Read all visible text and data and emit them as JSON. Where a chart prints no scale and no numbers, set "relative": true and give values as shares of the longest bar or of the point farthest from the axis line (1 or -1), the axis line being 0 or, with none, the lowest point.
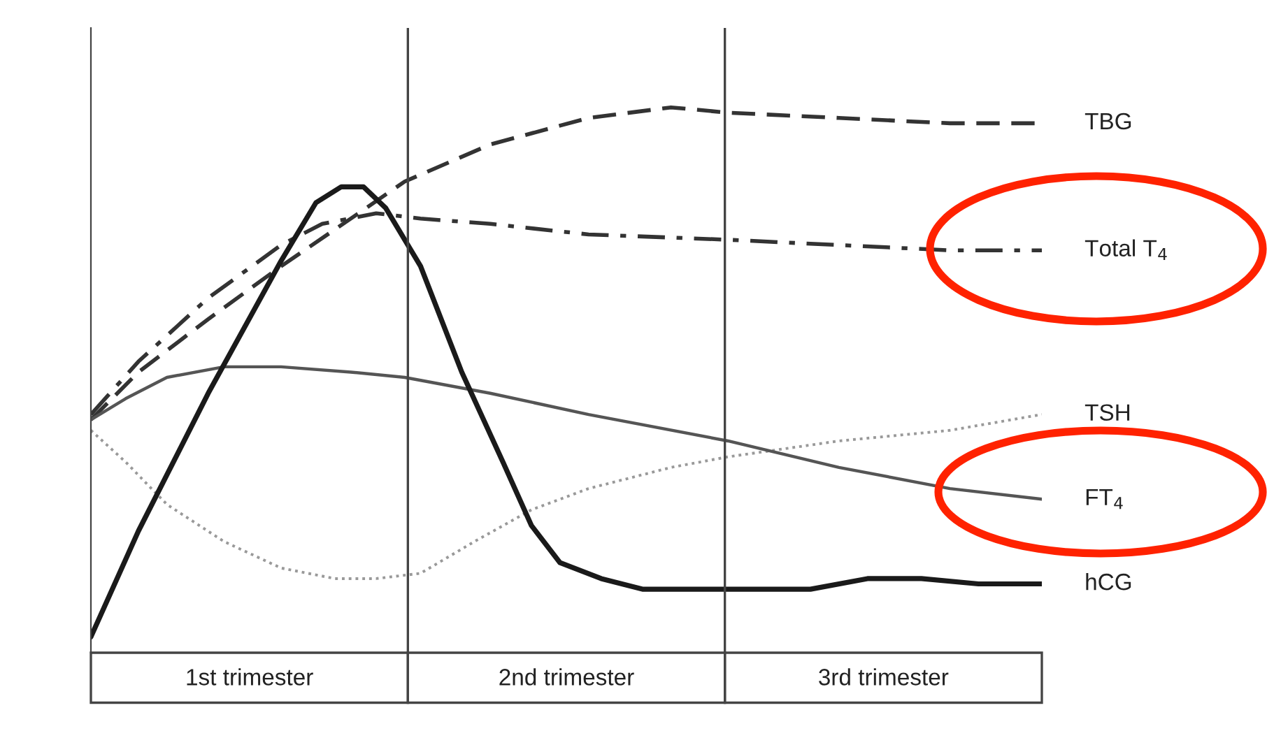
{
  "chart_data": {
    "type": "line",
    "relative": true,
    "xlim": [
      0,
      3
    ],
    "xticks": [
      {
        "value": 0.5,
        "label": "1st trimester"
      },
      {
        "value": 1.5,
        "label": "2nd trimester"
      },
      {
        "value": 2.5,
        "label": "3rd trimester"
      }
    ],
    "ref_lines": [
      {
        "axis": "x",
        "value": 1,
        "color": "#444444"
      },
      {
        "axis": "x",
        "value": 2,
        "color": "#444444"
      }
    ],
    "series": [
      {
        "name": "TBG",
        "color": "#333333",
        "line_style": "dashed",
        "x": [
          0,
          0.15,
          0.37,
          0.6,
          0.82,
          0.99,
          1.26,
          1.57,
          1.83,
          2.01,
          2.36,
          2.71,
          3
        ],
        "values": [
          0.41,
          0.5,
          0.6,
          0.7,
          0.79,
          0.86,
          0.93,
          0.98,
          1,
          0.99,
          0.98,
          0.97,
          0.97
        ]
      },
      {
        "name": "Total T$_{4}$",
        "color": "#333333",
        "line_style": "dashdot",
        "x": [
          0,
          0.15,
          0.37,
          0.6,
          0.73,
          0.9,
          1.04,
          1.26,
          1.57,
          2.01,
          2.36,
          2.71,
          3
        ],
        "values": [
          0.42,
          0.52,
          0.64,
          0.74,
          0.78,
          0.8,
          0.79,
          0.78,
          0.76,
          0.75,
          0.74,
          0.73,
          0.73
        ]
      },
      {
        "name": "TSH",
        "color": "#999999",
        "line_style": "dotted",
        "x": [
          0,
          0.11,
          0.24,
          0.42,
          0.6,
          0.77,
          0.9,
          1.04,
          1.21,
          1.39,
          1.57,
          1.83,
          2.01,
          2.36,
          2.71,
          3
        ],
        "values": [
          0.39,
          0.33,
          0.25,
          0.18,
          0.13,
          0.11,
          0.11,
          0.12,
          0.18,
          0.24,
          0.28,
          0.32,
          0.34,
          0.37,
          0.39,
          0.42
        ]
      },
      {
        "name": "FT$_{4}$",
        "color": "#555555",
        "line_style": "solid",
        "x": [
          0,
          0.11,
          0.24,
          0.42,
          0.6,
          0.82,
          0.99,
          1.26,
          1.57,
          2.01,
          2.36,
          2.71,
          3
        ],
        "values": [
          0.41,
          0.45,
          0.49,
          0.51,
          0.51,
          0.5,
          0.49,
          0.46,
          0.42,
          0.37,
          0.32,
          0.28,
          0.26
        ]
      },
      {
        "name": "hCG",
        "color": "#1a1a1a",
        "line_style": "solid",
        "x": [
          0,
          0.15,
          0.37,
          0.6,
          0.71,
          0.79,
          0.86,
          0.93,
          1.04,
          1.17,
          1.3,
          1.39,
          1.48,
          1.61,
          1.74,
          2.01,
          2.27,
          2.45,
          2.62,
          2.8,
          3
        ],
        "values": [
          0,
          0.2,
          0.46,
          0.71,
          0.82,
          0.85,
          0.85,
          0.81,
          0.7,
          0.5,
          0.33,
          0.21,
          0.14,
          0.11,
          0.09,
          0.09,
          0.09,
          0.11,
          0.11,
          0.1,
          0.1
        ]
      }
    ]
  }
}
